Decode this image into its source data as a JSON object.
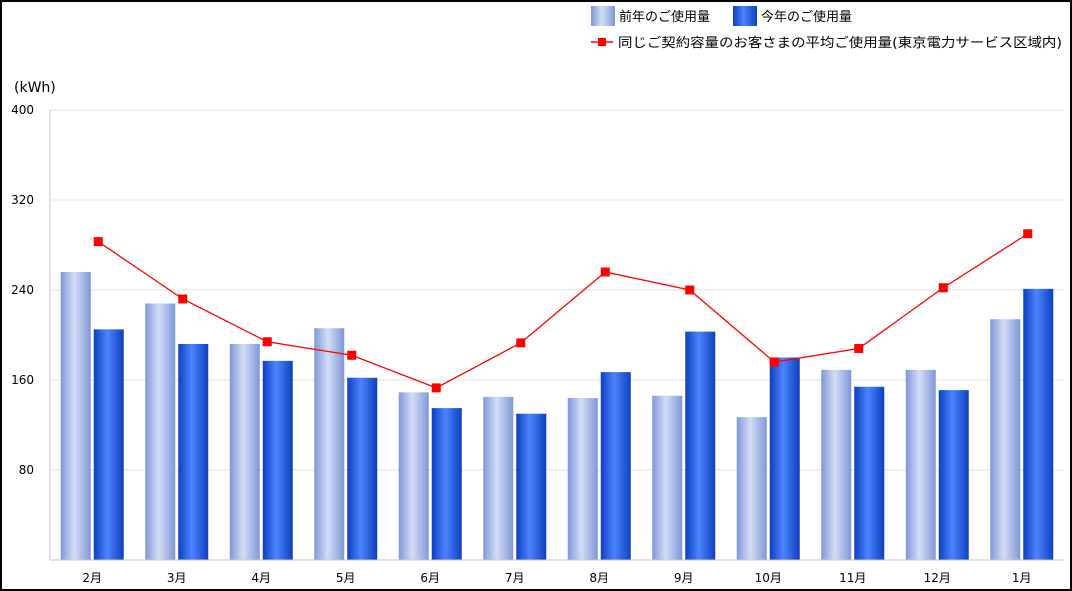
{
  "chart_data": {
    "type": "bar",
    "unit_label": "(kWh)",
    "categories": [
      "2月",
      "3月",
      "4月",
      "5月",
      "6月",
      "7月",
      "8月",
      "9月",
      "10月",
      "11月",
      "12月",
      "1月"
    ],
    "series": [
      {
        "name": "前年のご使用量",
        "kind": "bar",
        "color": "#9db2e6",
        "values": [
          256,
          228,
          192,
          206,
          149,
          145,
          144,
          146,
          127,
          169,
          169,
          214
        ]
      },
      {
        "name": "今年のご使用量",
        "kind": "bar",
        "color": "#1f55dd",
        "values": [
          205,
          192,
          177,
          162,
          135,
          130,
          167,
          203,
          180,
          154,
          151,
          241
        ]
      },
      {
        "name": "同じご契約容量のお客さまの平均ご使用量(東京電力サービス区域内)",
        "kind": "line",
        "color": "#ff0000",
        "values": [
          283,
          232,
          194,
          182,
          153,
          193,
          256,
          240,
          176,
          188,
          242,
          290
        ]
      }
    ],
    "yticks": [
      "400",
      "320",
      "240",
      "160",
      "80"
    ],
    "ylim": [
      0,
      400
    ],
    "grid": true,
    "legend_position": "top-right"
  }
}
